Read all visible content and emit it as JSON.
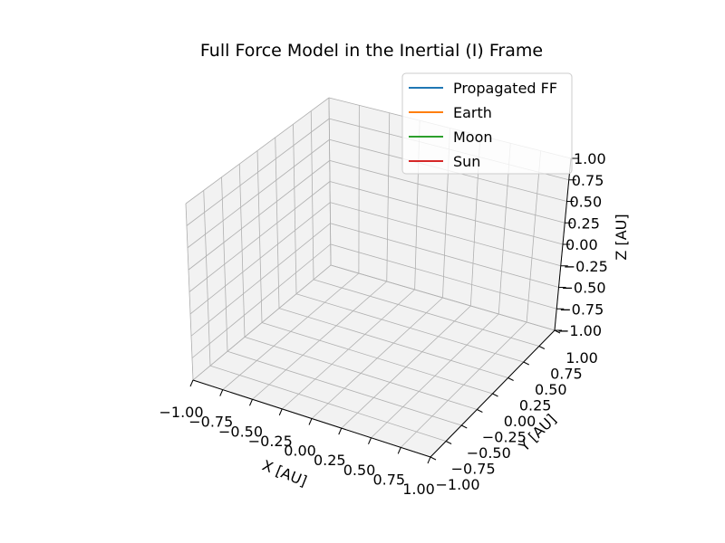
{
  "chart_data": {
    "type": "line",
    "projection": "3d",
    "title": "Full Force Model in the Inertial (I) Frame",
    "xlabel": "X [AU]",
    "ylabel": "Y [AU]",
    "zlabel": "Z [AU]",
    "xlim": [
      -1.0,
      1.0
    ],
    "ylim": [
      -1.0,
      1.0
    ],
    "zlim": [
      -1.0,
      1.0
    ],
    "xticks": [
      "−1.00",
      "−0.75",
      "−0.50",
      "−0.25",
      "0.00",
      "0.25",
      "0.50",
      "0.75",
      "1.00"
    ],
    "yticks": [
      "−1.00",
      "−0.75",
      "−0.50",
      "−0.25",
      "0.00",
      "0.25",
      "0.50",
      "0.75",
      "1.00"
    ],
    "zticks": [
      "−1.00",
      "−0.75",
      "−0.50",
      "−0.25",
      "0.00",
      "0.25",
      "0.50",
      "0.75",
      "1.00"
    ],
    "grid": true,
    "legend_position": "top-right",
    "series": [
      {
        "name": "Propagated FF",
        "color": "#1f77b4",
        "values": []
      },
      {
        "name": "Earth",
        "color": "#ff7f0e",
        "values": []
      },
      {
        "name": "Moon",
        "color": "#2ca02c",
        "values": []
      },
      {
        "name": "Sun",
        "color": "#d62728",
        "values": []
      }
    ]
  }
}
